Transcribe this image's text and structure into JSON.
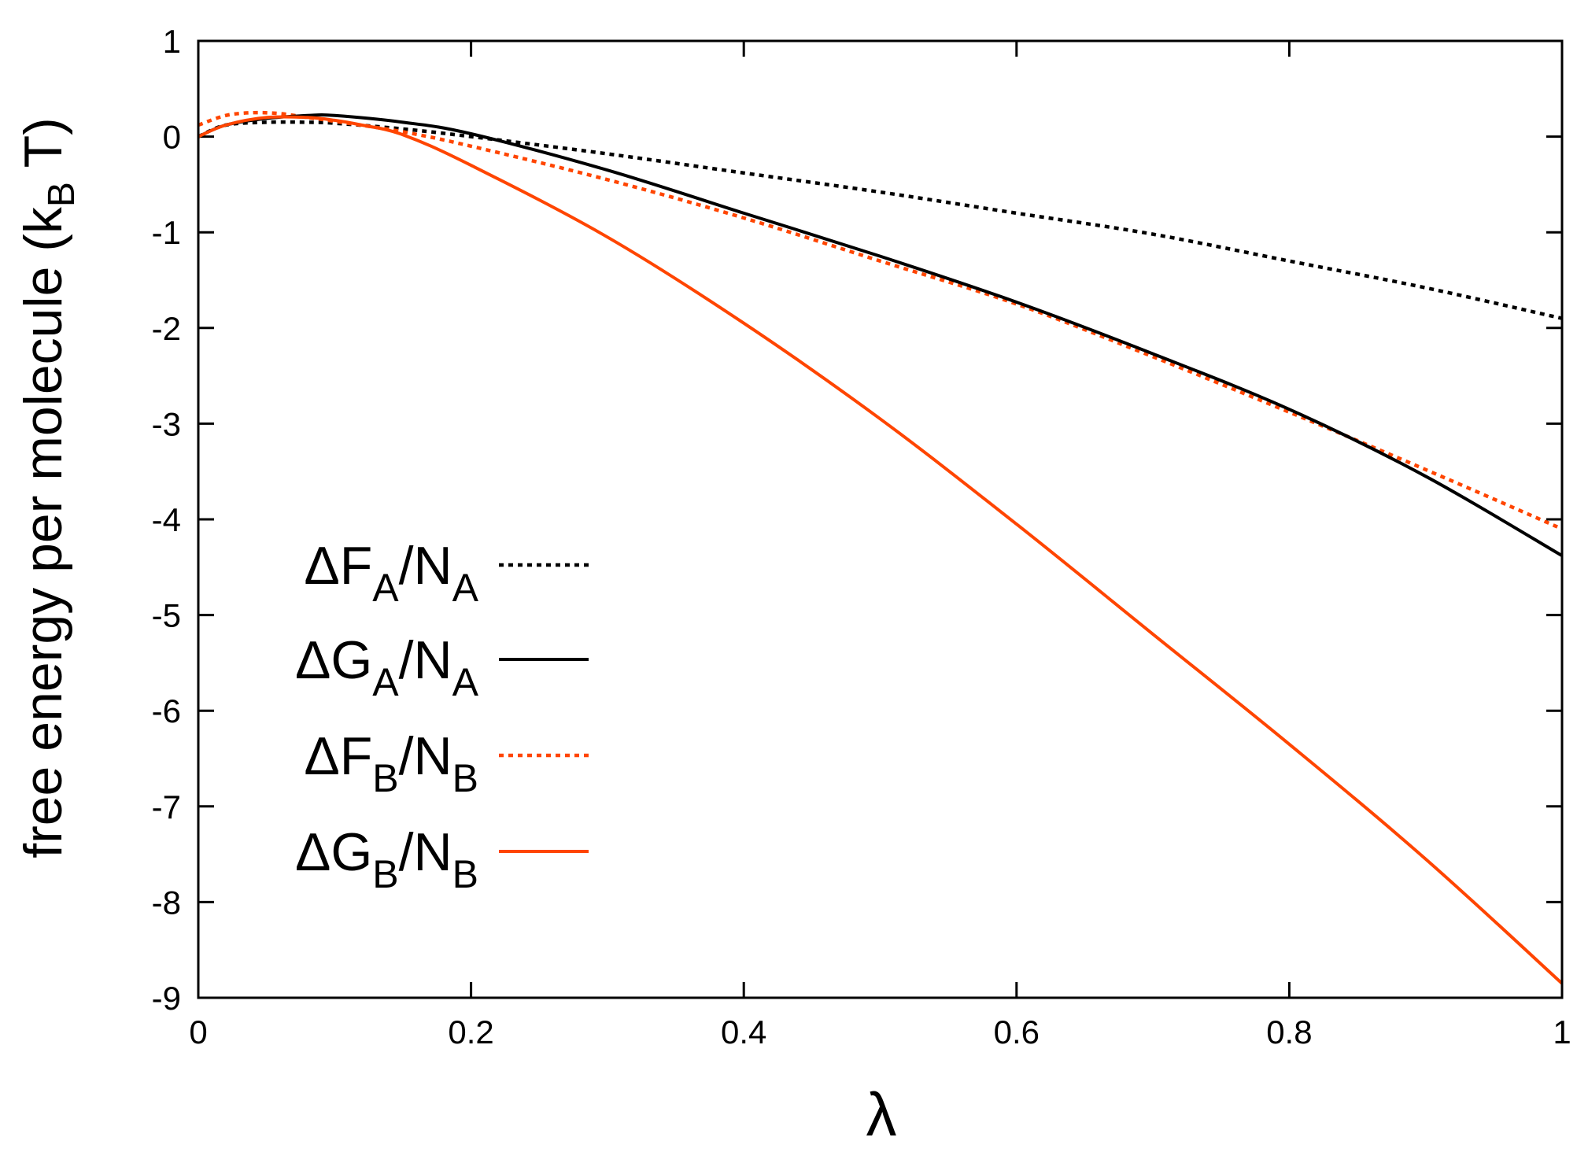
{
  "chart_data": {
    "type": "line",
    "xlabel": "λ",
    "ylabel": {
      "prefix": "free energy per molecule (k",
      "subscript": "B",
      "suffix": " T)"
    },
    "xlim": [
      0,
      1
    ],
    "ylim": [
      -9,
      1
    ],
    "xticks": [
      0,
      0.2,
      0.4,
      0.6,
      0.8,
      1
    ],
    "xtick_labels": [
      "0",
      "0.2",
      "0.4",
      "0.6",
      "0.8",
      "1"
    ],
    "yticks": [
      1,
      0,
      -1,
      -2,
      -3,
      -4,
      -5,
      -6,
      -7,
      -8,
      -9
    ],
    "ytick_labels": [
      "1",
      "0",
      "-1",
      "-2",
      "-3",
      "-4",
      "-5",
      "-6",
      "-7",
      "-8",
      "-9"
    ],
    "grid": false,
    "legend_position": "left",
    "series": [
      {
        "key": "dFA",
        "label": {
          "main": "ΔF",
          "sub1": "A",
          "mid": "/N",
          "sub2": "A"
        },
        "color": "#000000",
        "style": "dotted",
        "x": [
          0,
          0.02,
          0.05,
          0.08,
          0.1,
          0.15,
          0.2,
          0.3,
          0.4,
          0.5,
          0.6,
          0.7,
          0.8,
          0.9,
          1.0
        ],
        "y": [
          0,
          0.12,
          0.15,
          0.15,
          0.14,
          0.08,
          0.0,
          -0.18,
          -0.38,
          -0.58,
          -0.8,
          -1.02,
          -1.3,
          -1.58,
          -1.9
        ]
      },
      {
        "key": "dGA",
        "label": {
          "main": "ΔG",
          "sub1": "A",
          "mid": "/N",
          "sub2": "A"
        },
        "color": "#000000",
        "style": "solid",
        "x": [
          0,
          0.02,
          0.05,
          0.08,
          0.1,
          0.15,
          0.2,
          0.3,
          0.4,
          0.5,
          0.6,
          0.7,
          0.8,
          0.9,
          1.0
        ],
        "y": [
          0,
          0.12,
          0.19,
          0.22,
          0.22,
          0.15,
          0.03,
          -0.35,
          -0.8,
          -1.25,
          -1.73,
          -2.27,
          -2.85,
          -3.55,
          -4.38
        ]
      },
      {
        "key": "dFB",
        "label": {
          "main": "ΔF",
          "sub1": "B",
          "mid": "/N",
          "sub2": "B"
        },
        "color": "#ff4500",
        "style": "dotted",
        "x": [
          0,
          0.02,
          0.04,
          0.06,
          0.08,
          0.1,
          0.15,
          0.2,
          0.3,
          0.4,
          0.5,
          0.6,
          0.7,
          0.8,
          0.9,
          1.0
        ],
        "y": [
          0.12,
          0.22,
          0.25,
          0.24,
          0.2,
          0.16,
          0.05,
          -0.1,
          -0.45,
          -0.85,
          -1.3,
          -1.75,
          -2.3,
          -2.88,
          -3.48,
          -4.1
        ]
      },
      {
        "key": "dGB",
        "label": {
          "main": "ΔG",
          "sub1": "B",
          "mid": "/N",
          "sub2": "B"
        },
        "color": "#ff4500",
        "style": "solid",
        "x": [
          0,
          0.02,
          0.05,
          0.08,
          0.1,
          0.12,
          0.15,
          0.2,
          0.3,
          0.4,
          0.5,
          0.6,
          0.7,
          0.8,
          0.9,
          1.0
        ],
        "y": [
          0,
          0.12,
          0.2,
          0.2,
          0.17,
          0.12,
          0.02,
          -0.3,
          -1.05,
          -1.95,
          -2.95,
          -4.05,
          -5.2,
          -6.35,
          -7.55,
          -8.85
        ]
      }
    ]
  }
}
